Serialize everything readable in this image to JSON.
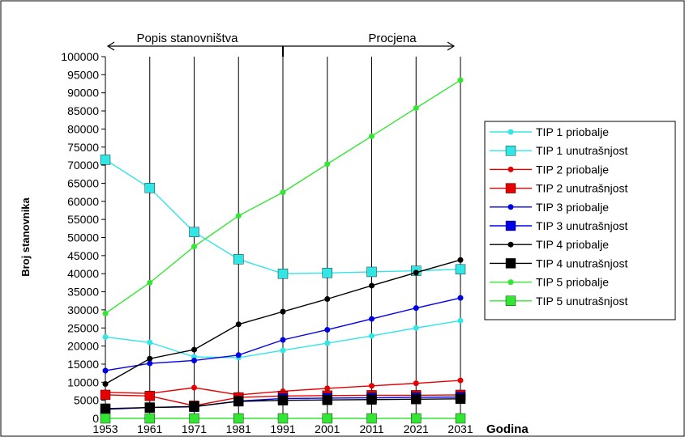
{
  "chart_data": {
    "type": "line",
    "title": "",
    "ylabel": "Broj stanovnika",
    "xlabel": "Godina",
    "categories": [
      "1953",
      "1961",
      "1971",
      "1981",
      "1991",
      "2001",
      "2011",
      "2021",
      "2031"
    ],
    "ylim": [
      0,
      100000
    ],
    "yticks": [
      0,
      5000,
      10000,
      15000,
      20000,
      25000,
      30000,
      35000,
      40000,
      45000,
      50000,
      55000,
      60000,
      65000,
      70000,
      75000,
      80000,
      85000,
      90000,
      95000,
      100000
    ],
    "grid": "vertical",
    "legend_position": "right",
    "period_census": "Popis stanovništva",
    "period_estimate": "Procjena",
    "series": [
      {
        "name": "TIP 1 priobalje",
        "color": "#33e6e6",
        "marker": "circle",
        "values": [
          22500,
          21000,
          17000,
          16800,
          18800,
          20800,
          22800,
          25000,
          27000
        ]
      },
      {
        "name": "TIP 1 unutrašnjost",
        "color": "#33e6e6",
        "marker": "square",
        "values": [
          71500,
          63700,
          51500,
          44000,
          40000,
          40200,
          40500,
          40800,
          41200
        ]
      },
      {
        "name": "TIP 2 priobalje",
        "color": "#e60000",
        "marker": "circle",
        "values": [
          7200,
          6900,
          8500,
          6500,
          7500,
          8300,
          9000,
          9700,
          10500
        ]
      },
      {
        "name": "TIP 2 unutrašnjost",
        "color": "#e60000",
        "marker": "square",
        "values": [
          6500,
          6200,
          3500,
          5800,
          6200,
          6300,
          6400,
          6400,
          6500
        ]
      },
      {
        "name": "TIP 3 priobalje",
        "color": "#0000e6",
        "marker": "circle",
        "values": [
          13200,
          15200,
          16000,
          17500,
          21700,
          24500,
          27500,
          30500,
          33300
        ]
      },
      {
        "name": "TIP 3 unutrašnjost",
        "color": "#0000e6",
        "marker": "square",
        "values": [
          2500,
          3000,
          3200,
          4800,
          5500,
          5600,
          5700,
          5800,
          5900
        ]
      },
      {
        "name": "TIP 4 priobalje",
        "color": "#000000",
        "marker": "circle",
        "values": [
          9500,
          16500,
          19000,
          26000,
          29500,
          33000,
          36700,
          40300,
          43800
        ]
      },
      {
        "name": "TIP 4 unutrašnjost",
        "color": "#000000",
        "marker": "square",
        "values": [
          2700,
          3000,
          3300,
          4700,
          5000,
          5100,
          5200,
          5300,
          5400
        ]
      },
      {
        "name": "TIP 5 priobalje",
        "color": "#33e633",
        "marker": "circle",
        "values": [
          29000,
          37500,
          47500,
          56000,
          62500,
          70300,
          78000,
          85800,
          93500
        ]
      },
      {
        "name": "TIP 5 unutrašnjost",
        "color": "#33e633",
        "marker": "square",
        "values": [
          0,
          0,
          0,
          0,
          0,
          0,
          0,
          0,
          0
        ]
      }
    ]
  }
}
